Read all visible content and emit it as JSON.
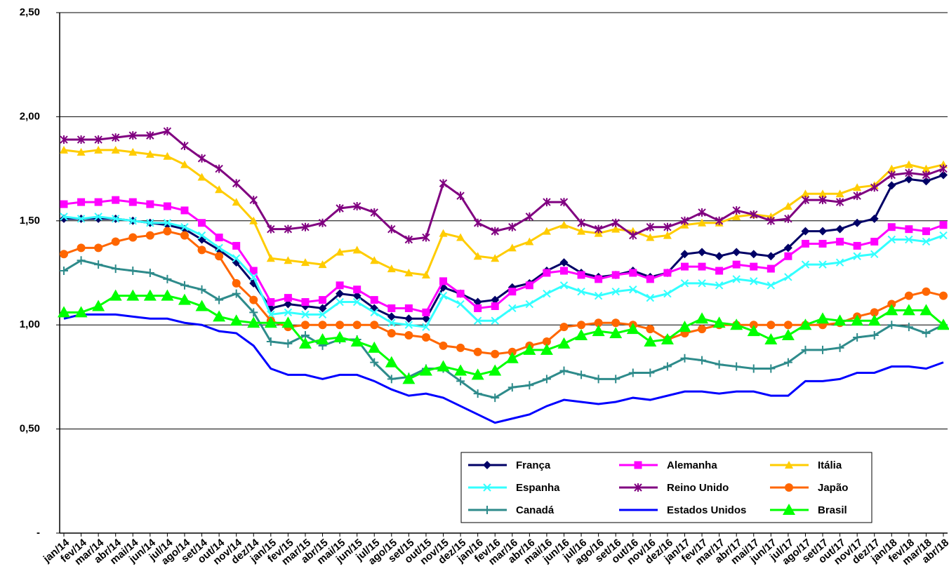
{
  "chart_data": {
    "type": "line",
    "categories": [
      "jan/14",
      "fev/14",
      "mar/14",
      "abr/14",
      "mai/14",
      "jun/14",
      "jul/14",
      "ago/14",
      "set/14",
      "out/14",
      "nov/14",
      "dez/14",
      "jan/15",
      "fev/15",
      "mar/15",
      "abr/15",
      "mai/15",
      "jun/15",
      "jul/15",
      "ago/15",
      "set/15",
      "out/15",
      "nov/15",
      "dez/15",
      "jan/16",
      "fev/16",
      "mar/16",
      "abr/16",
      "mai/16",
      "jun/16",
      "jul/16",
      "ago/16",
      "set/16",
      "out/16",
      "nov/16",
      "dez/16",
      "jan/17",
      "fev/17",
      "mar/17",
      "abr/17",
      "mai/17",
      "jun/17",
      "jul/17",
      "ago/17",
      "set/17",
      "out/17",
      "nov/17",
      "dez/17",
      "jan/18",
      "fev/18",
      "mar/18",
      "abr/18"
    ],
    "ylim": [
      0,
      2.5
    ],
    "yticks": [
      {
        "value": 0,
        "label": "-"
      },
      {
        "value": 0.5,
        "label": "0,50"
      },
      {
        "value": 1,
        "label": "1,00"
      },
      {
        "value": 1.5,
        "label": "1,50"
      },
      {
        "value": 2,
        "label": "2,00"
      },
      {
        "value": 2.5,
        "label": "2,50"
      }
    ],
    "grid": true,
    "series": [
      {
        "name": "França",
        "color": "#000066",
        "marker": "diamond",
        "values": [
          1.51,
          1.51,
          1.51,
          1.51,
          1.5,
          1.49,
          1.48,
          1.46,
          1.41,
          1.36,
          1.3,
          1.2,
          1.08,
          1.1,
          1.09,
          1.08,
          1.15,
          1.14,
          1.08,
          1.04,
          1.03,
          1.03,
          1.18,
          1.15,
          1.11,
          1.12,
          1.18,
          1.2,
          1.26,
          1.3,
          1.25,
          1.23,
          1.24,
          1.26,
          1.23,
          1.25,
          1.34,
          1.35,
          1.33,
          1.35,
          1.34,
          1.33,
          1.37,
          1.45,
          1.45,
          1.46,
          1.49,
          1.51,
          1.67,
          1.7,
          1.69,
          1.72
        ]
      },
      {
        "name": "Alemanha",
        "color": "#ff00ff",
        "marker": "square",
        "values": [
          1.58,
          1.59,
          1.59,
          1.6,
          1.59,
          1.58,
          1.57,
          1.55,
          1.49,
          1.42,
          1.38,
          1.26,
          1.11,
          1.13,
          1.11,
          1.12,
          1.19,
          1.17,
          1.12,
          1.08,
          1.08,
          1.06,
          1.21,
          1.15,
          1.08,
          1.09,
          1.16,
          1.19,
          1.25,
          1.26,
          1.24,
          1.22,
          1.24,
          1.25,
          1.22,
          1.25,
          1.28,
          1.28,
          1.26,
          1.29,
          1.28,
          1.27,
          1.33,
          1.39,
          1.39,
          1.4,
          1.38,
          1.4,
          1.47,
          1.46,
          1.45,
          1.48
        ]
      },
      {
        "name": "Itália",
        "color": "#ffcc00",
        "marker": "triangle",
        "values": [
          1.84,
          1.83,
          1.84,
          1.84,
          1.83,
          1.82,
          1.81,
          1.77,
          1.71,
          1.65,
          1.59,
          1.5,
          1.32,
          1.31,
          1.3,
          1.29,
          1.35,
          1.36,
          1.31,
          1.27,
          1.25,
          1.24,
          1.44,
          1.42,
          1.33,
          1.32,
          1.37,
          1.4,
          1.45,
          1.48,
          1.45,
          1.44,
          1.46,
          1.45,
          1.42,
          1.43,
          1.48,
          1.49,
          1.49,
          1.52,
          1.53,
          1.52,
          1.57,
          1.63,
          1.63,
          1.63,
          1.66,
          1.67,
          1.75,
          1.77,
          1.75,
          1.77
        ]
      },
      {
        "name": "Espanha",
        "color": "#33ffff",
        "marker": "x",
        "values": [
          1.52,
          1.51,
          1.52,
          1.51,
          1.5,
          1.49,
          1.49,
          1.47,
          1.43,
          1.37,
          1.32,
          1.23,
          1.05,
          1.06,
          1.05,
          1.05,
          1.11,
          1.11,
          1.06,
          1.01,
          1.0,
          0.99,
          1.14,
          1.1,
          1.02,
          1.02,
          1.08,
          1.1,
          1.15,
          1.19,
          1.16,
          1.14,
          1.16,
          1.17,
          1.13,
          1.15,
          1.2,
          1.2,
          1.19,
          1.22,
          1.21,
          1.19,
          1.23,
          1.29,
          1.29,
          1.3,
          1.33,
          1.34,
          1.41,
          1.41,
          1.4,
          1.43
        ]
      },
      {
        "name": "Reino Unido",
        "color": "#800080",
        "marker": "star",
        "values": [
          1.89,
          1.89,
          1.89,
          1.9,
          1.91,
          1.91,
          1.93,
          1.86,
          1.8,
          1.75,
          1.68,
          1.6,
          1.46,
          1.46,
          1.47,
          1.49,
          1.56,
          1.57,
          1.54,
          1.46,
          1.41,
          1.42,
          1.68,
          1.62,
          1.49,
          1.45,
          1.47,
          1.52,
          1.59,
          1.59,
          1.49,
          1.46,
          1.49,
          1.43,
          1.47,
          1.47,
          1.5,
          1.54,
          1.5,
          1.55,
          1.53,
          1.5,
          1.51,
          1.6,
          1.6,
          1.59,
          1.62,
          1.66,
          1.72,
          1.73,
          1.72,
          1.75
        ]
      },
      {
        "name": "Japão",
        "color": "#ff6600",
        "marker": "circle",
        "values": [
          1.34,
          1.37,
          1.37,
          1.4,
          1.42,
          1.43,
          1.45,
          1.43,
          1.36,
          1.33,
          1.2,
          1.12,
          1.02,
          0.99,
          1.0,
          1.0,
          1.0,
          1.0,
          1.0,
          0.96,
          0.95,
          0.94,
          0.9,
          0.89,
          0.87,
          0.86,
          0.87,
          0.9,
          0.92,
          0.99,
          1.0,
          1.01,
          1.01,
          1.0,
          0.98,
          0.93,
          0.96,
          0.98,
          1.0,
          1.0,
          1.0,
          1.0,
          1.0,
          1.0,
          1.0,
          1.01,
          1.04,
          1.06,
          1.1,
          1.14,
          1.16,
          1.14
        ]
      },
      {
        "name": "Canadá",
        "color": "#2e8b8b",
        "marker": "plus",
        "values": [
          1.26,
          1.31,
          1.29,
          1.27,
          1.26,
          1.25,
          1.22,
          1.19,
          1.17,
          1.12,
          1.15,
          1.06,
          0.92,
          0.91,
          0.95,
          0.9,
          0.93,
          0.93,
          0.82,
          0.74,
          0.75,
          0.79,
          0.79,
          0.73,
          0.67,
          0.65,
          0.7,
          0.71,
          0.74,
          0.78,
          0.76,
          0.74,
          0.74,
          0.77,
          0.77,
          0.8,
          0.84,
          0.83,
          0.81,
          0.8,
          0.79,
          0.79,
          0.82,
          0.88,
          0.88,
          0.89,
          0.94,
          0.95,
          1.0,
          0.99,
          0.96,
          1.0
        ]
      },
      {
        "name": "Estados Unidos",
        "color": "#0000ff",
        "marker": "none",
        "values": [
          1.03,
          1.05,
          1.05,
          1.05,
          1.04,
          1.03,
          1.03,
          1.01,
          1.0,
          0.97,
          0.96,
          0.9,
          0.79,
          0.76,
          0.76,
          0.74,
          0.76,
          0.76,
          0.73,
          0.69,
          0.66,
          0.67,
          0.65,
          0.61,
          0.57,
          0.53,
          0.55,
          0.57,
          0.61,
          0.64,
          0.63,
          0.62,
          0.63,
          0.65,
          0.64,
          0.66,
          0.68,
          0.68,
          0.67,
          0.68,
          0.68,
          0.66,
          0.66,
          0.73,
          0.73,
          0.74,
          0.77,
          0.77,
          0.8,
          0.8,
          0.79,
          0.82
        ]
      },
      {
        "name": "Brasil",
        "color": "#00ff00",
        "marker": "big-triangle",
        "values": [
          1.06,
          1.06,
          1.09,
          1.14,
          1.14,
          1.14,
          1.14,
          1.12,
          1.09,
          1.04,
          1.02,
          1.01,
          1.01,
          1.01,
          0.91,
          0.93,
          0.94,
          0.92,
          0.89,
          0.82,
          0.74,
          0.78,
          0.8,
          0.78,
          0.76,
          0.78,
          0.84,
          0.88,
          0.88,
          0.91,
          0.95,
          0.97,
          0.96,
          0.98,
          0.92,
          0.93,
          0.99,
          1.03,
          1.01,
          1.0,
          0.97,
          0.93,
          0.95,
          1.0,
          1.03,
          1.02,
          1.02,
          1.02,
          1.07,
          1.07,
          1.07,
          1.0
        ]
      }
    ]
  }
}
